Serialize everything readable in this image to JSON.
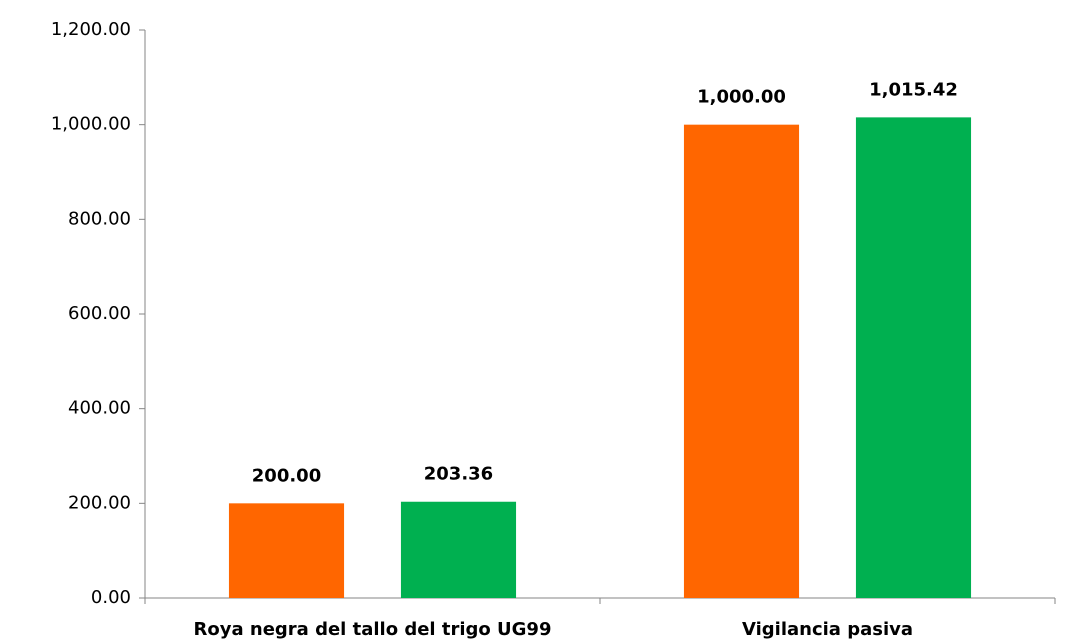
{
  "chart_data": {
    "type": "bar",
    "categories": [
      "Roya negra del tallo del trigo UG99",
      "Vigilancia pasiva"
    ],
    "series": [
      {
        "color": "#ff6600",
        "values": [
          200,
          1000
        ],
        "value_labels": [
          "200.00",
          "1,000.00"
        ]
      },
      {
        "color": "#00b050",
        "values": [
          203.36,
          1015.42
        ],
        "value_labels": [
          "203.36",
          "1,015.42"
        ]
      }
    ],
    "ylim": [
      0,
      1200
    ],
    "yticks": [
      {
        "value": 0,
        "label": "0.00"
      },
      {
        "value": 200,
        "label": "200.00"
      },
      {
        "value": 400,
        "label": "400.00"
      },
      {
        "value": 600,
        "label": "600.00"
      },
      {
        "value": 800,
        "label": "800.00"
      },
      {
        "value": 1000,
        "label": "1,000.00"
      },
      {
        "value": 1200,
        "label": "1,200.00"
      }
    ],
    "grid": false
  }
}
